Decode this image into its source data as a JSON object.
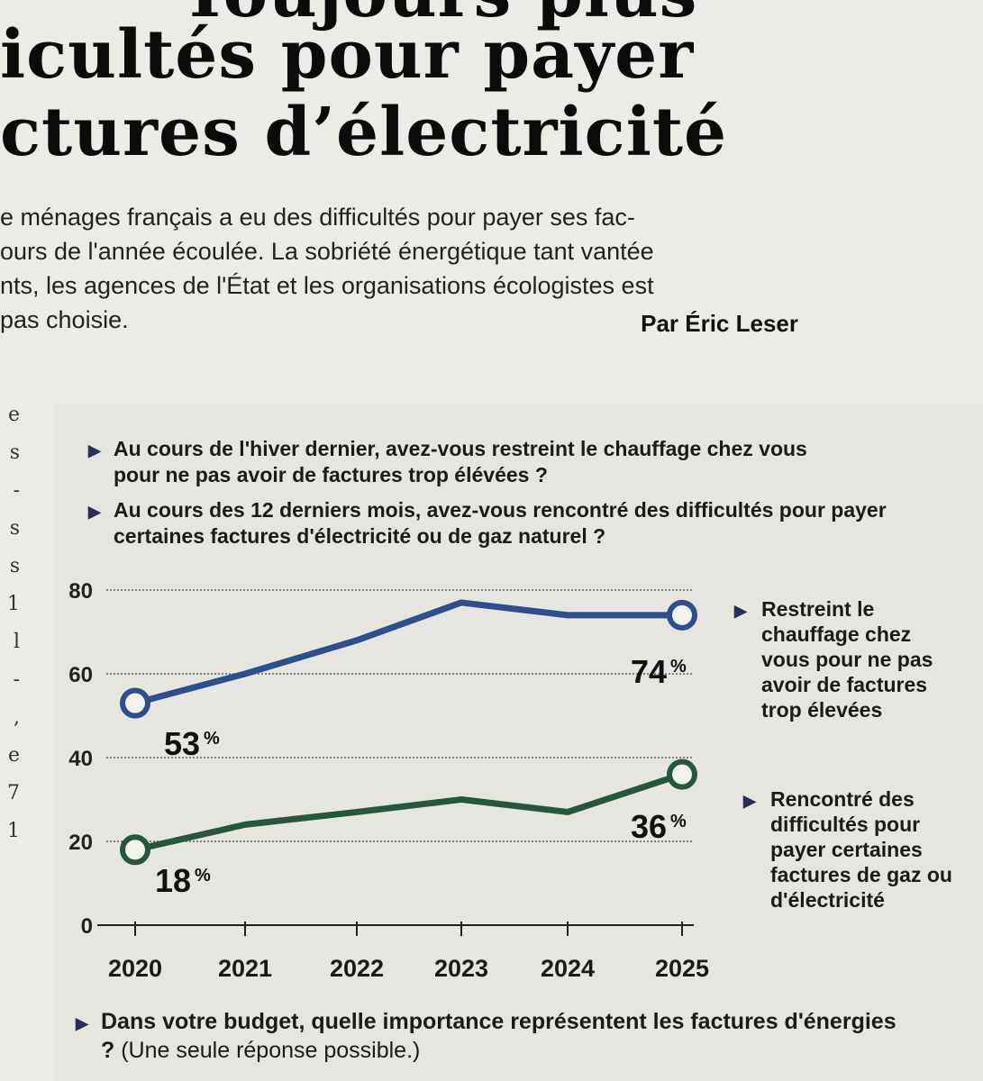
{
  "headline": {
    "line0": "Toujours plus",
    "line1": "icultés pour payer",
    "line2": "ctures d’électricité"
  },
  "lead": {
    "lines": [
      "e ménages français a eu des difficultés pour payer ses fac-",
      "ours de l'année écoulée. La sobriété énergétique tant vantée",
      "nts, les agences de l'État et les organisations écologistes est",
      " pas choisie."
    ],
    "byline": "Par Éric Leser"
  },
  "margin_letters": [
    "e",
    "s",
    "-",
    "s",
    "s",
    "1",
    "l",
    "-",
    ",",
    "e",
    "7",
    "1"
  ],
  "questions": {
    "q1": "Au cours de l'hiver dernier, avez-vous restreint le chauffage chez vous pour ne pas avoir de factures trop élévées ?",
    "q2": "Au cours des 12 derniers mois, avez-vous rencontré des difficultés pour payer certaines factures d'électricité ou de gaz naturel ?",
    "q3_bold": "Dans votre budget, quelle importance représentent les factures d'énergies ?",
    "q3_normal": " (Une seule réponse possible.)"
  },
  "colors": {
    "blue_series": "#2f4f8c",
    "green_series": "#27573a",
    "axis": "#222222",
    "grid": "#444444"
  },
  "chart_data": {
    "type": "line",
    "x": [
      2020,
      2021,
      2022,
      2023,
      2024,
      2025
    ],
    "ylim": [
      0,
      80
    ],
    "yticks": [
      0,
      20,
      40,
      60,
      80
    ],
    "grid": true,
    "series": [
      {
        "name": "Restreint le chauffage chez vous pour ne pas avoir de factures trop élevées",
        "values": [
          53,
          60,
          68,
          77,
          74,
          74
        ],
        "start_label": "53 %",
        "end_label": "74 %",
        "color": "#2f4f8c"
      },
      {
        "name": "Rencontré des difficultés pour payer certaines factures de gaz ou d'électricité",
        "values": [
          18,
          24,
          27,
          30,
          27,
          36
        ],
        "start_label": "18 %",
        "end_label": "36 %",
        "color": "#27573a"
      }
    ]
  }
}
